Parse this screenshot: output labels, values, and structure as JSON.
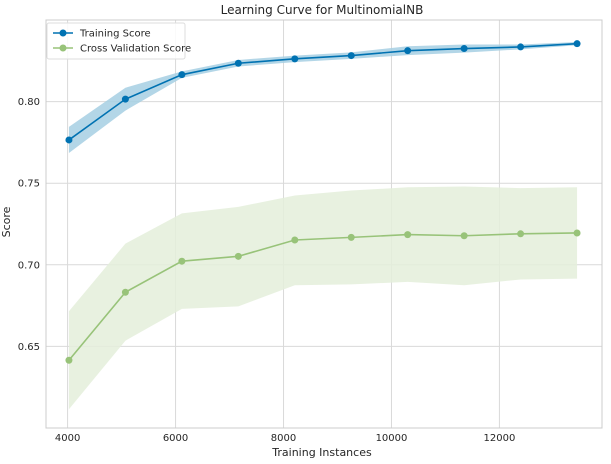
{
  "chart_data": {
    "type": "line",
    "title": "Learning Curve for MultinomialNB",
    "xlabel": "Training Instances",
    "ylabel": "Score",
    "xlim": [
      3600,
      13900
    ],
    "ylim": [
      0.6,
      0.85
    ],
    "xticks": [
      4000,
      6000,
      8000,
      10000,
      12000
    ],
    "xtick_labels": [
      "4000",
      "6000",
      "8000",
      "10000",
      "12000"
    ],
    "yticks": [
      0.65,
      0.7,
      0.75,
      0.8
    ],
    "ytick_labels": [
      "0.65",
      "0.70",
      "0.75",
      "0.80"
    ],
    "grid": true,
    "legend_position": "top-left",
    "x": [
      4025,
      5071,
      6117,
      7163,
      8209,
      9255,
      10300,
      11346,
      12392,
      13438
    ],
    "series": [
      {
        "name": "Training Score",
        "color": "#0072B2",
        "band_color": "#a6cfe3",
        "values": [
          0.7765,
          0.8015,
          0.8165,
          0.8235,
          0.8262,
          0.8282,
          0.8312,
          0.8325,
          0.8335,
          0.8355
        ],
        "lower": [
          0.7685,
          0.7945,
          0.8145,
          0.8215,
          0.8242,
          0.8262,
          0.8285,
          0.83,
          0.832,
          0.8345
        ],
        "upper": [
          0.7845,
          0.8085,
          0.8185,
          0.8255,
          0.8282,
          0.8302,
          0.8339,
          0.835,
          0.835,
          0.8365
        ]
      },
      {
        "name": "Cross Validation Score",
        "color": "#98c379",
        "band_color": "#e4eedb",
        "values": [
          0.6415,
          0.6832,
          0.7022,
          0.7052,
          0.7152,
          0.7168,
          0.7185,
          0.7178,
          0.719,
          0.7195
        ],
        "lower": [
          0.6115,
          0.6535,
          0.673,
          0.6745,
          0.6875,
          0.688,
          0.6895,
          0.6875,
          0.691,
          0.6915
        ],
        "upper": [
          0.6715,
          0.713,
          0.7315,
          0.7355,
          0.7425,
          0.7455,
          0.7475,
          0.748,
          0.747,
          0.7475
        ]
      }
    ]
  }
}
